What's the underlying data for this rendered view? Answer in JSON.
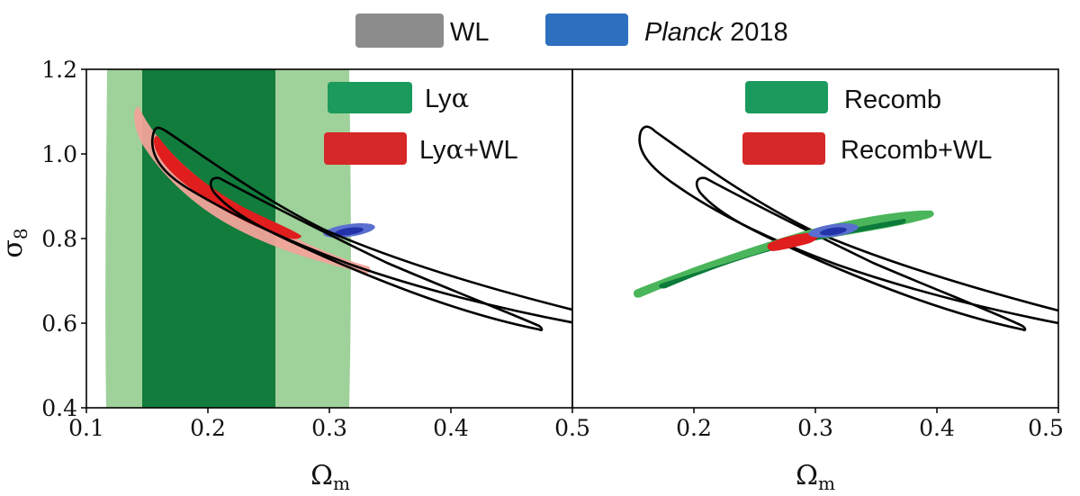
{
  "top_legend": {
    "wl_label": "WL",
    "planck_label_italic": "Planck",
    "planck_label_rest": " 2018",
    "wl_color": "#8c8c8c",
    "planck_color": "#2f6fbf"
  },
  "chart_data": [
    {
      "type": "contour",
      "panel": "left",
      "xlabel_base": "Ω",
      "xlabel_sub": "m",
      "ylabel_base": "σ",
      "ylabel_sub": "8",
      "xlim": [
        0.1,
        0.5
      ],
      "ylim": [
        0.4,
        1.2
      ],
      "xticks": [
        "0.1",
        "0.2",
        "0.3",
        "0.4",
        "0.5"
      ],
      "yticks": [
        "0.4",
        "0.6",
        "0.8",
        "1.0",
        "1.2"
      ],
      "legend": [
        {
          "label_base": "Ly",
          "label_greek": "α",
          "label_rest": "",
          "color": "#1a9a5c"
        },
        {
          "label_base": "Ly",
          "label_greek": "α",
          "label_rest": "+WL",
          "color": "#d62828"
        }
      ],
      "series": [
        {
          "name": "Lyα",
          "color_outer": "#9fd19a",
          "color_inner": "#127c3c",
          "outer_omega_m_range": [
            0.115,
            0.315
          ],
          "inner_omega_m_range": [
            0.145,
            0.255
          ],
          "sigma8_range": [
            0.4,
            1.2
          ]
        },
        {
          "name": "Lyα+WL",
          "color_outer": "#f2a39a",
          "color_inner": "#e01e1e",
          "outer_centerline": [
            [
              0.145,
              1.115
            ],
            [
              0.2,
              0.96
            ],
            [
              0.25,
              0.85
            ],
            [
              0.33,
              0.76
            ]
          ],
          "inner_centerline": [
            [
              0.165,
              1.04
            ],
            [
              0.2,
              0.955
            ],
            [
              0.24,
              0.87
            ],
            [
              0.28,
              0.8
            ]
          ]
        },
        {
          "name": "WL",
          "color": "#000000",
          "outer_centerline": [
            [
              0.155,
              1.07
            ],
            [
              0.2,
              0.955
            ],
            [
              0.3,
              0.79
            ],
            [
              0.4,
              0.67
            ],
            [
              0.5,
              0.56
            ]
          ],
          "inner_centerline": [
            [
              0.2,
              0.935
            ],
            [
              0.3,
              0.775
            ],
            [
              0.4,
              0.665
            ],
            [
              0.47,
              0.585
            ]
          ]
        },
        {
          "name": "Planck 2018",
          "color": "#2f6fbf",
          "center": [
            0.315,
            0.81
          ]
        }
      ]
    },
    {
      "type": "contour",
      "panel": "right",
      "xlabel_base": "Ω",
      "xlabel_sub": "m",
      "xlim": [
        0.1,
        0.5
      ],
      "ylim": [
        0.4,
        1.2
      ],
      "xticks": [
        "0.1",
        "0.2",
        "0.3",
        "0.4",
        "0.5"
      ],
      "legend": [
        {
          "label": "Recomb",
          "color": "#1a9a5c"
        },
        {
          "label": "Recomb+WL",
          "color": "#d62828"
        }
      ],
      "series": [
        {
          "name": "Recomb",
          "color_outer": "#4ab55a",
          "color_inner": "#0b7a3b",
          "outer_centerline": [
            [
              0.15,
              0.67
            ],
            [
              0.25,
              0.76
            ],
            [
              0.35,
              0.825
            ],
            [
              0.39,
              0.85
            ]
          ],
          "inner_centerline": [
            [
              0.175,
              0.695
            ],
            [
              0.25,
              0.76
            ],
            [
              0.37,
              0.84
            ]
          ]
        },
        {
          "name": "Recomb+WL",
          "color": "#e01e1e",
          "outer_centerline": [
            [
              0.262,
              0.78
            ],
            [
              0.3,
              0.805
            ]
          ]
        },
        {
          "name": "WL",
          "color": "#000000",
          "outer_centerline": [
            [
              0.155,
              1.07
            ],
            [
              0.2,
              0.955
            ],
            [
              0.3,
              0.79
            ],
            [
              0.4,
              0.67
            ],
            [
              0.5,
              0.56
            ]
          ],
          "inner_centerline": [
            [
              0.2,
              0.935
            ],
            [
              0.3,
              0.775
            ],
            [
              0.4,
              0.665
            ],
            [
              0.47,
              0.585
            ]
          ]
        },
        {
          "name": "Planck 2018",
          "color": "#2f6fbf",
          "center": [
            0.315,
            0.81
          ]
        }
      ]
    }
  ]
}
